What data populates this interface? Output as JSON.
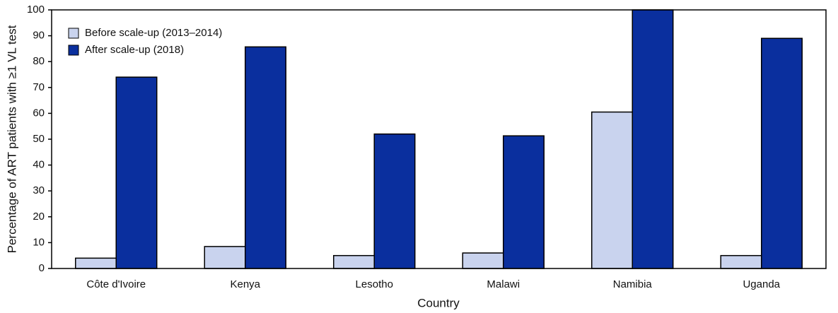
{
  "chart_data": {
    "type": "bar",
    "categories": [
      "Côte d'Ivoire",
      "Kenya",
      "Lesotho",
      "Malawi",
      "Namibia",
      "Uganda"
    ],
    "series": [
      {
        "name": "Before scale-up (2013–2014)",
        "color": "#c9d3ee",
        "values": [
          4,
          8.5,
          5,
          6,
          60.5,
          5
        ]
      },
      {
        "name": "After scale-up (2018)",
        "color": "#0a2f9e",
        "values": [
          74,
          85.7,
          52,
          51.3,
          100,
          89
        ]
      }
    ],
    "x_label": "Country",
    "y_label": "Percentage of ART patients with ≥1 VL test",
    "ylim": [
      0,
      100
    ],
    "yticks": [
      0,
      10,
      20,
      30,
      40,
      50,
      60,
      70,
      80,
      90,
      100
    ],
    "grid": false,
    "legend": "upper left"
  }
}
